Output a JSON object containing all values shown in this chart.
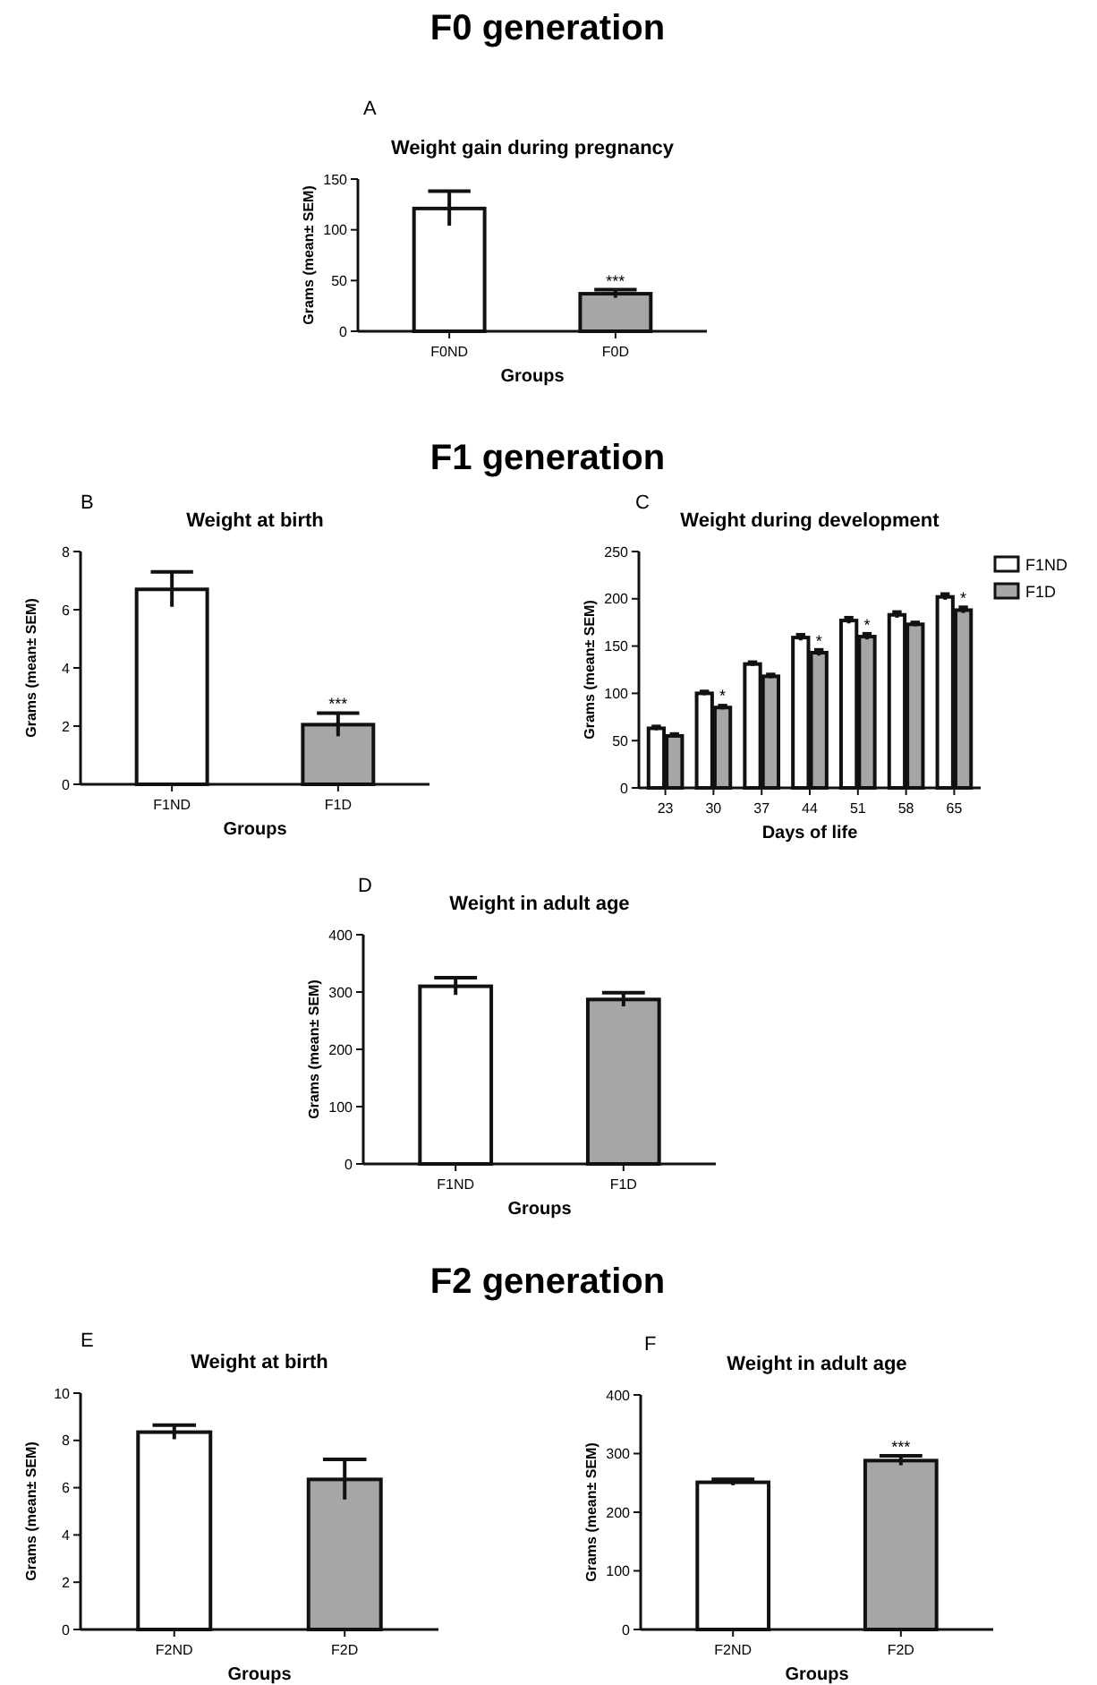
{
  "chart_data": [
    {
      "type": "bar",
      "title": "Weight gain during  pregnancy",
      "annotations": [
        "F0 generation",
        "A",
        {
          "text": "***",
          "x": "F0D",
          "y": 44
        }
      ],
      "xlabel": "Groups",
      "ylabel": "Grams (mean± SEM)",
      "categories": [
        "F0ND",
        "F0D"
      ],
      "values": [
        121,
        37
      ],
      "errors": [
        17,
        4
      ],
      "colors": [
        "#ffffff",
        "#a6a6a6"
      ],
      "ylim": [
        0,
        150
      ],
      "yticks": [
        0,
        50,
        100,
        150
      ]
    },
    {
      "type": "bar",
      "title": "Weight at birth",
      "annotations": [
        "F1 generation",
        "B",
        {
          "text": "***",
          "x": "F1D",
          "y": 2.6
        }
      ],
      "xlabel": "Groups",
      "ylabel": "Grams (mean± SEM)",
      "categories": [
        "F1ND",
        "F1D"
      ],
      "values": [
        6.7,
        2.05
      ],
      "errors": [
        0.6,
        0.4
      ],
      "colors": [
        "#ffffff",
        "#a6a6a6"
      ],
      "ylim": [
        0,
        8
      ],
      "yticks": [
        0,
        2,
        4,
        6,
        8
      ]
    },
    {
      "type": "bar",
      "title": "Weight during development",
      "annotations": [
        "C",
        {
          "text": "*",
          "x": "30",
          "y": 92
        },
        {
          "text": "*",
          "x": "44",
          "y": 150
        },
        {
          "text": "*",
          "x": "51",
          "y": 167
        },
        {
          "text": "*",
          "x": "65",
          "y": 195
        }
      ],
      "xlabel": "Days of life",
      "ylabel": "Grams (mean± SEM)",
      "categories": [
        "23",
        "30",
        "37",
        "44",
        "51",
        "58",
        "65"
      ],
      "series": [
        {
          "name": "F1ND",
          "color": "#ffffff",
          "values": [
            63,
            100,
            131,
            159,
            177,
            183,
            202
          ],
          "errors": [
            2,
            2,
            2,
            3,
            3,
            3,
            3
          ]
        },
        {
          "name": "F1D",
          "color": "#a6a6a6",
          "values": [
            55,
            85,
            118,
            143,
            160,
            173,
            188
          ],
          "errors": [
            2,
            2,
            2,
            3,
            3,
            2,
            3
          ]
        }
      ],
      "ylim": [
        0,
        250
      ],
      "yticks": [
        0,
        50,
        100,
        150,
        200,
        250
      ],
      "legend": "right"
    },
    {
      "type": "bar",
      "title": "Weight in adult age",
      "annotations": [
        "D"
      ],
      "xlabel": "Groups",
      "ylabel": "Grams (mean± SEM)",
      "categories": [
        "F1ND",
        "F1D"
      ],
      "values": [
        310,
        287
      ],
      "errors": [
        15,
        12
      ],
      "colors": [
        "#ffffff",
        "#a6a6a6"
      ],
      "ylim": [
        0,
        400
      ],
      "yticks": [
        0,
        100,
        200,
        300,
        400
      ]
    },
    {
      "type": "bar",
      "title": "Weight at birth",
      "annotations": [
        "F2 generation",
        "E"
      ],
      "xlabel": "Groups",
      "ylabel": "Grams (mean± SEM)",
      "categories": [
        "F2ND",
        "F2D"
      ],
      "values": [
        8.35,
        6.35
      ],
      "errors": [
        0.3,
        0.85
      ],
      "colors": [
        "#ffffff",
        "#a6a6a6"
      ],
      "ylim": [
        0,
        10
      ],
      "yticks": [
        0,
        2,
        4,
        6,
        8,
        10
      ]
    },
    {
      "type": "bar",
      "title": "Weight in adult age",
      "annotations": [
        "F",
        {
          "text": "***",
          "x": "F2D",
          "y": 303
        }
      ],
      "xlabel": "Groups",
      "ylabel": "Grams (mean± SEM)",
      "categories": [
        "F2ND",
        "F2D"
      ],
      "values": [
        251,
        288
      ],
      "errors": [
        5,
        8
      ],
      "colors": [
        "#ffffff",
        "#a6a6a6"
      ],
      "ylim": [
        0,
        400
      ],
      "yticks": [
        0,
        100,
        200,
        300,
        400
      ]
    }
  ]
}
